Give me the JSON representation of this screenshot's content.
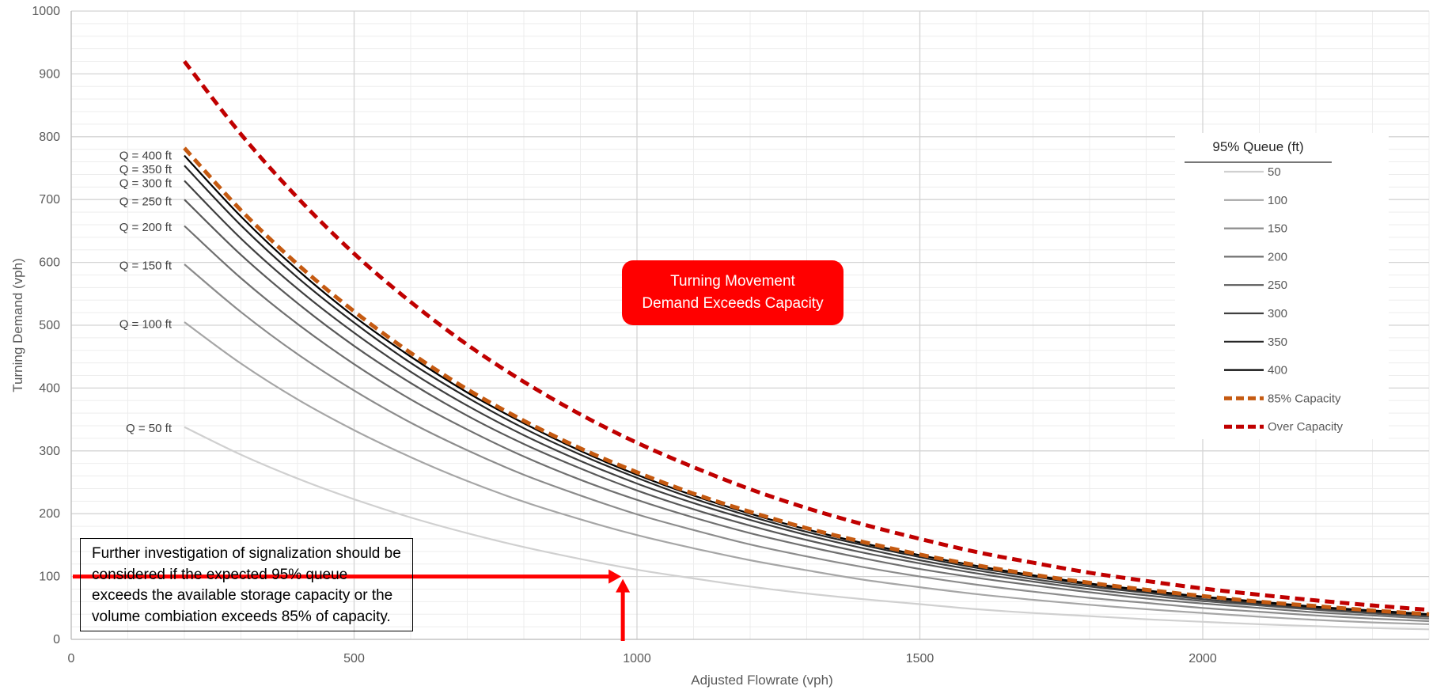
{
  "chart_data": {
    "type": "line",
    "title": "",
    "xlabel": "Adjusted Flowrate (vph)",
    "ylabel": "Turning Demand (vph)",
    "xlim": [
      0,
      2400
    ],
    "ylim": [
      0,
      1000
    ],
    "x_ticks": [
      "0",
      "500",
      "1000",
      "1500",
      "2000"
    ],
    "y_ticks": [
      "0",
      "100",
      "200",
      "300",
      "400",
      "500",
      "600",
      "700",
      "800",
      "900",
      "1000"
    ],
    "grid": true,
    "legend_position": "right",
    "legend_title": "95% Queue (ft)",
    "x": [
      200,
      300,
      400,
      500,
      600,
      700,
      800,
      900,
      1000,
      1100,
      1200,
      1300,
      1400,
      1500,
      1600,
      1700,
      1800,
      1900,
      2000,
      2100,
      2200,
      2300,
      2400
    ],
    "series": [
      {
        "name": "50",
        "color": "#d0d0d0",
        "dashed": false,
        "values": [
          338,
          294,
          256,
          223,
          194,
          169,
          147,
          128,
          111,
          97,
          84,
          73,
          64,
          56,
          48,
          42,
          37,
          32,
          28,
          24,
          21,
          18,
          16
        ]
      },
      {
        "name": "100",
        "color": "#a6a6a6",
        "dashed": false,
        "values": [
          505,
          439,
          382,
          333,
          290,
          252,
          219,
          191,
          166,
          145,
          126,
          110,
          95,
          83,
          72,
          63,
          55,
          48,
          42,
          36,
          31,
          27,
          24
        ]
      },
      {
        "name": "150",
        "color": "#8c8c8c",
        "dashed": false,
        "values": [
          597,
          521,
          454,
          396,
          345,
          301,
          262,
          229,
          199,
          174,
          151,
          132,
          115,
          100,
          87,
          76,
          66,
          58,
          50,
          44,
          38,
          33,
          29
        ]
      },
      {
        "name": "200",
        "color": "#707070",
        "dashed": false,
        "values": [
          658,
          575,
          502,
          438,
          382,
          334,
          291,
          254,
          222,
          194,
          169,
          148,
          129,
          112,
          98,
          86,
          75,
          65,
          57,
          50,
          43,
          38,
          33
        ]
      },
      {
        "name": "250",
        "color": "#595959",
        "dashed": false,
        "values": [
          700,
          612,
          535,
          467,
          408,
          356,
          311,
          272,
          237,
          207,
          181,
          158,
          138,
          121,
          105,
          92,
          80,
          70,
          61,
          54,
          47,
          41,
          36
        ]
      },
      {
        "name": "300",
        "color": "#404040",
        "dashed": false,
        "values": [
          730,
          638,
          558,
          488,
          426,
          372,
          325,
          284,
          248,
          217,
          190,
          166,
          145,
          126,
          110,
          96,
          84,
          74,
          64,
          56,
          49,
          43,
          37
        ]
      },
      {
        "name": "350",
        "color": "#262626",
        "dashed": false,
        "values": [
          754,
          659,
          576,
          504,
          440,
          385,
          336,
          294,
          257,
          224,
          196,
          171,
          150,
          131,
          114,
          100,
          87,
          76,
          67,
          58,
          51,
          44,
          39
        ]
      },
      {
        "name": "400",
        "color": "#000000",
        "dashed": false,
        "values": [
          770,
          673,
          588,
          514,
          450,
          393,
          344,
          300,
          262,
          229,
          200,
          175,
          153,
          134,
          117,
          102,
          89,
          78,
          68,
          60,
          52,
          46,
          40
        ]
      },
      {
        "name": "85% Capacity",
        "color": "#c55a11",
        "dashed": true,
        "values": [
          782,
          683,
          597,
          522,
          456,
          398,
          348,
          304,
          266,
          232,
          203,
          177,
          155,
          135,
          118,
          103,
          90,
          79,
          69,
          60,
          53,
          46,
          40
        ]
      },
      {
        "name": "Over Capacity",
        "color": "#c00000",
        "dashed": true,
        "values": [
          920,
          804,
          703,
          614,
          537,
          469,
          410,
          358,
          313,
          274,
          239,
          209,
          183,
          160,
          139,
          122,
          106,
          93,
          81,
          71,
          62,
          54,
          47
        ]
      }
    ],
    "curve_labels": [
      {
        "text": "Q = 400 ft",
        "y": 770
      },
      {
        "text": "Q = 350 ft",
        "y": 748
      },
      {
        "text": "Q = 300 ft",
        "y": 726
      },
      {
        "text": "Q = 250 ft",
        "y": 697
      },
      {
        "text": "Q = 200 ft",
        "y": 656
      },
      {
        "text": "Q = 150 ft",
        "y": 595
      },
      {
        "text": "Q = 100 ft",
        "y": 502
      },
      {
        "text": "Q = 50 ft",
        "y": 336
      }
    ],
    "example_arrow": {
      "x": 975,
      "y": 100
    },
    "annotations": {
      "exceeds_line1": "Turning Movement",
      "exceeds_line2": "Demand Exceeds Capacity",
      "note": "Further investigation of signalization should be considered if the expected 95% queue exceeds the available storage capacity or the volume combiation exceeds 85% of capacity."
    }
  }
}
